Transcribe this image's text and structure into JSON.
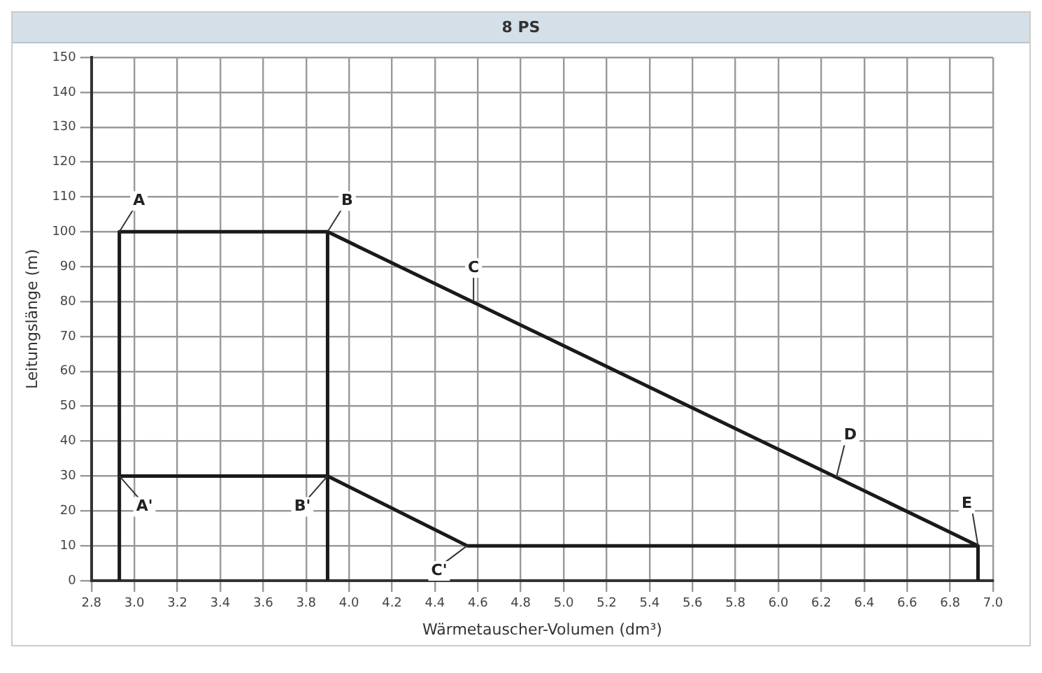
{
  "chart_data": {
    "type": "line",
    "title": "8 PS",
    "xlabel": "Wärmetauscher-Volumen (dm³)",
    "ylabel": "Leitungslänge (m)",
    "series": [
      {
        "color": "#1a1a1a",
        "x": [
          2.93,
          2.93,
          3.9,
          6.93,
          6.93
        ],
        "values": [
          0,
          100,
          100,
          10,
          0
        ]
      },
      {
        "color": "#1a1a1a",
        "x": [
          3.9,
          3.9
        ],
        "values": [
          100,
          0
        ]
      },
      {
        "color": "#1a1a1a",
        "x": [
          2.93,
          3.9,
          4.55,
          6.93
        ],
        "values": [
          30,
          30,
          10,
          10
        ]
      }
    ],
    "annotations": [
      {
        "text": "A",
        "x": 2.93,
        "y": 100
      },
      {
        "text": "B",
        "x": 3.9,
        "y": 100
      },
      {
        "text": "C",
        "x": 4.58,
        "y": 80
      },
      {
        "text": "D",
        "x": 6.27,
        "y": 29.6
      },
      {
        "text": "E",
        "x": 6.93,
        "y": 10
      },
      {
        "text": "A'",
        "x": 2.93,
        "y": 30
      },
      {
        "text": "B'",
        "x": 3.9,
        "y": 30
      },
      {
        "text": "C'",
        "x": 4.55,
        "y": 10
      }
    ],
    "xlim": [
      2.8,
      7.0
    ],
    "xticks": [
      2.8,
      {
        "value": 3,
        "label": "3.0"
      },
      3.2,
      3.4,
      3.6,
      3.8,
      {
        "value": 4,
        "label": "4.0"
      },
      4.2,
      4.4,
      4.6,
      4.8,
      {
        "value": 5,
        "label": "5.0"
      },
      5.2,
      5.4,
      5.6,
      5.8,
      {
        "value": 6,
        "label": "6.0"
      },
      6.2,
      6.4,
      6.6,
      6.8,
      {
        "value": 7,
        "label": "7.0"
      }
    ],
    "ylim": [
      0,
      150
    ],
    "yticks": [
      0,
      10,
      20,
      30,
      40,
      50,
      60,
      70,
      80,
      90,
      100,
      110,
      120,
      130,
      140,
      150
    ],
    "grid": true,
    "legend": false,
    "marker": "none",
    "line_style": "solid"
  }
}
